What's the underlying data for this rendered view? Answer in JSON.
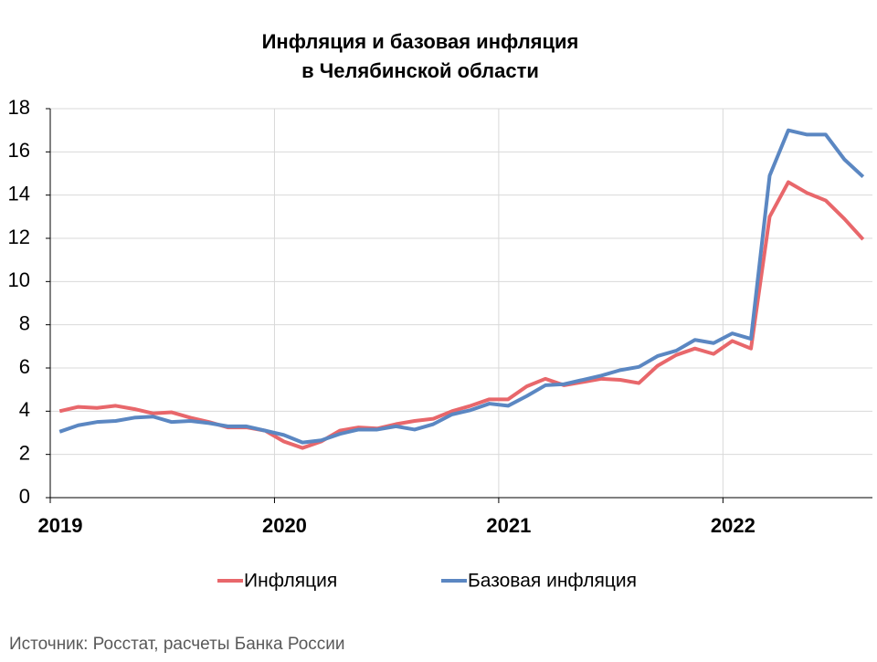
{
  "chart_data": {
    "type": "line",
    "title": [
      "Инфляция и базовая инфляция",
      "в  Челябинской области"
    ],
    "categories": [
      "2019",
      null,
      null,
      null,
      null,
      null,
      null,
      null,
      null,
      null,
      null,
      null,
      "2020",
      null,
      null,
      null,
      null,
      null,
      null,
      null,
      null,
      null,
      null,
      null,
      "2021",
      null,
      null,
      null,
      null,
      null,
      null,
      null,
      null,
      null,
      null,
      null,
      "2022",
      null,
      null,
      null,
      null,
      null,
      null,
      null
    ],
    "series": [
      {
        "name": "Инфляция",
        "color": "#e8676b",
        "values": [
          4.0,
          4.2,
          4.15,
          4.25,
          4.1,
          3.9,
          3.95,
          3.7,
          3.5,
          3.25,
          3.25,
          3.1,
          2.6,
          2.3,
          2.6,
          3.1,
          3.25,
          3.2,
          3.4,
          3.55,
          3.65,
          4.0,
          4.25,
          4.55,
          4.55,
          5.15,
          5.5,
          5.2,
          5.35,
          5.5,
          5.45,
          5.3,
          6.1,
          6.6,
          6.9,
          6.65,
          7.25,
          6.9,
          13.0,
          14.6,
          14.1,
          13.75,
          12.9,
          11.95
        ]
      },
      {
        "name": "Базовая инфляция",
        "color": "#5b87c2",
        "values": [
          3.05,
          3.35,
          3.5,
          3.55,
          3.7,
          3.75,
          3.5,
          3.55,
          3.45,
          3.3,
          3.3,
          3.1,
          2.9,
          2.55,
          2.65,
          2.95,
          3.15,
          3.15,
          3.3,
          3.15,
          3.4,
          3.85,
          4.05,
          4.35,
          4.25,
          4.7,
          5.2,
          5.25,
          5.45,
          5.65,
          5.9,
          6.05,
          6.55,
          6.8,
          7.3,
          7.15,
          7.6,
          7.35,
          14.9,
          17.0,
          16.8,
          16.8,
          15.65,
          14.85
        ]
      }
    ],
    "ylim": [
      0,
      18
    ],
    "yticks": [
      0,
      2,
      4,
      6,
      8,
      10,
      12,
      14,
      16,
      18
    ],
    "grid": true,
    "legend": "bottom",
    "source": "Источник: Росстат, расчеты Банка России"
  }
}
